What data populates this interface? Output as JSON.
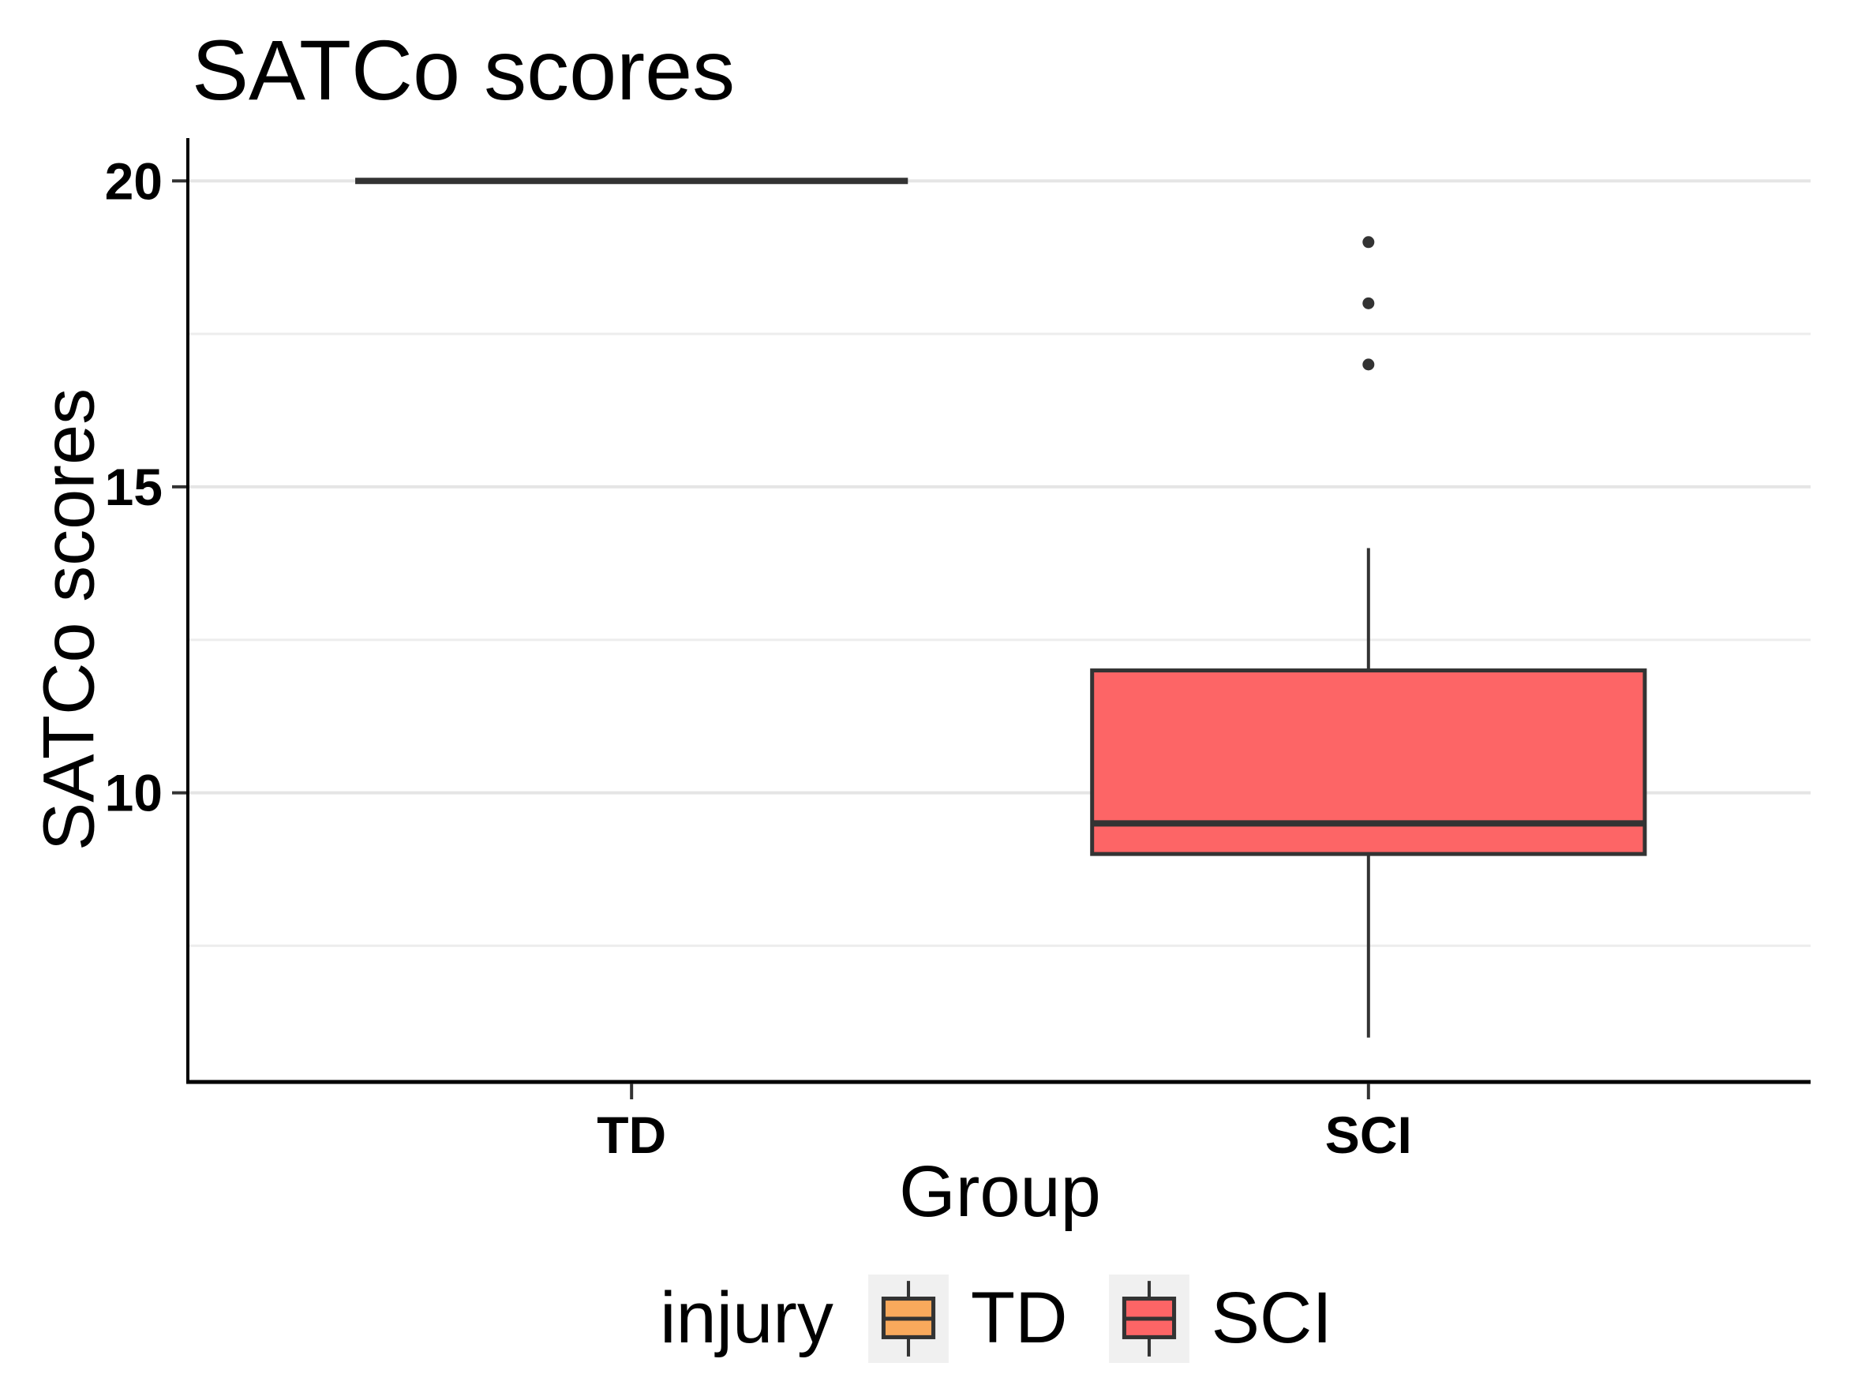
{
  "chart_data": {
    "type": "boxplot",
    "title": "SATCo scores",
    "xlabel": "Group",
    "ylabel": "SATCo scores",
    "categories": [
      "TD",
      "SCI"
    ],
    "ylim": [
      5.3,
      20.7
    ],
    "yticks": [
      20,
      15,
      10
    ],
    "y_minor_gridlines": [
      17.5,
      12.5,
      7.5
    ],
    "grid": "horizontal major and minor gridlines, light gray on white",
    "legend_position": "bottom",
    "series": [
      {
        "group": "TD",
        "fill": "#F9A95C",
        "q1": 20,
        "median": 20,
        "q3": 20,
        "whisker_low": 20,
        "whisker_high": 20,
        "outliers": []
      },
      {
        "group": "SCI",
        "fill": "#FD6566",
        "q1": 9,
        "median": 9.5,
        "q3": 12,
        "whisker_low": 6,
        "whisker_high": 14,
        "outliers": [
          19,
          18,
          17
        ]
      }
    ],
    "legend": {
      "title": "injury",
      "entries": [
        {
          "label": "TD",
          "fill": "#F9A95C"
        },
        {
          "label": "SCI",
          "fill": "#FD6566"
        }
      ]
    },
    "colors": {
      "box_stroke": "#333333",
      "axis_line": "#000000",
      "gridline_major": "#E5E5E5",
      "gridline_minor": "#EDEDED",
      "text": "#000000",
      "legend_key_bg": "#F0F0F0"
    }
  }
}
